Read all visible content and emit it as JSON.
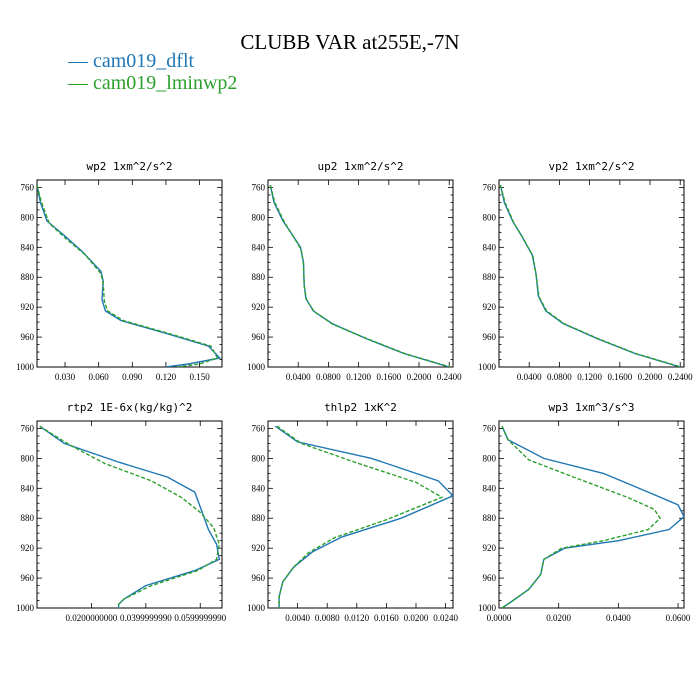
{
  "title": "CLUBB VAR at255E,-7N",
  "legend": [
    {
      "label": "cam019_dflt",
      "color": "#1f77b4"
    },
    {
      "label": "cam019_lminwp2",
      "color": "#2ca02c"
    }
  ],
  "chart_data": [
    {
      "type": "line",
      "title": "wp2  1xm^2/s^2",
      "xlim": [
        0.005,
        0.17
      ],
      "ylim": [
        750,
        1000
      ],
      "yticks": [
        "760",
        "800",
        "840",
        "880",
        "920",
        "960",
        "1000"
      ],
      "xticks": [
        "0.030",
        "0.060",
        "0.090",
        "0.120",
        "0.150"
      ],
      "xtick_values": [
        0.03,
        0.06,
        0.09,
        0.12,
        0.15
      ],
      "series": [
        {
          "name": "cam019_dflt",
          "x": [
            0.005,
            0.008,
            0.014,
            0.03,
            0.045,
            0.062,
            0.064,
            0.063,
            0.066,
            0.08,
            0.12,
            0.158,
            0.168,
            0.14,
            0.12
          ],
          "y": [
            757,
            780,
            805,
            825,
            845,
            872,
            885,
            910,
            925,
            938,
            955,
            972,
            988,
            996,
            1000
          ]
        },
        {
          "name": "cam019_lminwp2",
          "x": [
            0.005,
            0.009,
            0.016,
            0.032,
            0.048,
            0.062,
            0.064,
            0.065,
            0.068,
            0.082,
            0.122,
            0.16,
            0.166,
            0.15,
            0.13
          ],
          "y": [
            757,
            780,
            808,
            830,
            850,
            875,
            888,
            912,
            925,
            938,
            955,
            972,
            988,
            996,
            1000
          ]
        }
      ]
    },
    {
      "type": "line",
      "title": "up2  1xm^2/s^2",
      "xlim": [
        0.0,
        0.245
      ],
      "ylim": [
        750,
        1000
      ],
      "yticks": [
        "760",
        "800",
        "840",
        "880",
        "920",
        "960",
        "1000"
      ],
      "xticks": [
        "0.0400",
        "0.0800",
        "0.1200",
        "0.1600",
        "0.2000",
        "0.2400"
      ],
      "xtick_values": [
        0.04,
        0.08,
        0.12,
        0.16,
        0.2,
        0.24
      ],
      "series": [
        {
          "name": "cam019_dflt",
          "x": [
            0.003,
            0.008,
            0.02,
            0.03,
            0.043,
            0.047,
            0.048,
            0.05,
            0.06,
            0.085,
            0.13,
            0.18,
            0.24
          ],
          "y": [
            757,
            780,
            805,
            820,
            840,
            860,
            890,
            908,
            925,
            942,
            962,
            982,
            1000
          ]
        },
        {
          "name": "cam019_lminwp2",
          "x": [
            0.003,
            0.009,
            0.022,
            0.032,
            0.044,
            0.047,
            0.048,
            0.051,
            0.061,
            0.086,
            0.131,
            0.181,
            0.241
          ],
          "y": [
            757,
            780,
            807,
            823,
            843,
            863,
            892,
            910,
            926,
            943,
            962,
            982,
            1000
          ]
        }
      ]
    },
    {
      "type": "line",
      "title": "vp2  1xm^2/s^2",
      "xlim": [
        0.0,
        0.245
      ],
      "ylim": [
        750,
        1000
      ],
      "yticks": [
        "760",
        "800",
        "840",
        "880",
        "920",
        "960",
        "1000"
      ],
      "xticks": [
        "0.0400",
        "0.0800",
        "0.1200",
        "0.1600",
        "0.2000",
        "0.2400"
      ],
      "xtick_values": [
        0.04,
        0.08,
        0.12,
        0.16,
        0.2,
        0.24
      ],
      "series": [
        {
          "name": "cam019_dflt",
          "x": [
            0.002,
            0.007,
            0.018,
            0.03,
            0.044,
            0.049,
            0.052,
            0.062,
            0.085,
            0.13,
            0.18,
            0.24
          ],
          "y": [
            757,
            780,
            805,
            825,
            850,
            875,
            905,
            925,
            942,
            962,
            982,
            1000
          ]
        },
        {
          "name": "cam019_lminwp2",
          "x": [
            0.002,
            0.008,
            0.02,
            0.032,
            0.045,
            0.049,
            0.053,
            0.063,
            0.086,
            0.131,
            0.181,
            0.241
          ],
          "y": [
            757,
            780,
            808,
            828,
            852,
            877,
            906,
            925,
            942,
            962,
            982,
            1000
          ]
        }
      ]
    },
    {
      "type": "line",
      "title": "rtp2  1E-6x(kg/kg)^2",
      "xlim": [
        0.0,
        0.068
      ],
      "ylim": [
        750,
        1000
      ],
      "yticks": [
        "760",
        "800",
        "840",
        "880",
        "920",
        "960",
        "1000"
      ],
      "xticks": [
        "0.0200000000",
        "0.0399999990",
        "0.0599999990"
      ],
      "xtick_values": [
        0.02,
        0.04,
        0.06
      ],
      "series": [
        {
          "name": "cam019_dflt",
          "x": [
            0.001,
            0.01,
            0.03,
            0.048,
            0.058,
            0.061,
            0.063,
            0.066,
            0.067,
            0.058,
            0.04,
            0.032,
            0.03,
            0.03
          ],
          "y": [
            757,
            780,
            805,
            825,
            845,
            875,
            895,
            915,
            935,
            950,
            970,
            988,
            995,
            1000
          ]
        },
        {
          "name": "cam019_lminwp2",
          "x": [
            0.001,
            0.012,
            0.025,
            0.042,
            0.053,
            0.06,
            0.065,
            0.067,
            0.066,
            0.059,
            0.042,
            0.032,
            0.03,
            0.03
          ],
          "y": [
            757,
            782,
            807,
            830,
            852,
            872,
            893,
            915,
            935,
            950,
            970,
            988,
            995,
            1000
          ]
        }
      ]
    },
    {
      "type": "line",
      "title": "thlp2  1xK^2",
      "xlim": [
        0.0,
        0.025
      ],
      "ylim": [
        750,
        1000
      ],
      "yticks": [
        "760",
        "800",
        "840",
        "880",
        "920",
        "960",
        "1000"
      ],
      "xticks": [
        "0.0040",
        "0.0080",
        "0.0120",
        "0.0160",
        "0.0200",
        "0.0240"
      ],
      "xtick_values": [
        0.004,
        0.008,
        0.012,
        0.016,
        0.02,
        0.024
      ],
      "series": [
        {
          "name": "cam019_dflt",
          "x": [
            0.001,
            0.004,
            0.014,
            0.023,
            0.025,
            0.018,
            0.01,
            0.006,
            0.0035,
            0.002,
            0.0015,
            0.0015
          ],
          "y": [
            757,
            778,
            800,
            830,
            850,
            880,
            905,
            925,
            945,
            965,
            985,
            1000
          ]
        },
        {
          "name": "cam019_lminwp2",
          "x": [
            0.0012,
            0.0045,
            0.012,
            0.02,
            0.0235,
            0.016,
            0.009,
            0.0055,
            0.0034,
            0.002,
            0.0015,
            0.0015
          ],
          "y": [
            757,
            780,
            806,
            832,
            852,
            882,
            906,
            926,
            946,
            965,
            985,
            1000
          ]
        }
      ]
    },
    {
      "type": "line",
      "title": "wp3  1xm^3/s^3",
      "xlim": [
        0.0,
        0.062
      ],
      "ylim": [
        750,
        1000
      ],
      "yticks": [
        "760",
        "800",
        "840",
        "880",
        "920",
        "960",
        "1000"
      ],
      "xticks": [
        "0.0000",
        "0.0200",
        "0.0400",
        "0.0600"
      ],
      "xtick_values": [
        0.0,
        0.02,
        0.04,
        0.06
      ],
      "series": [
        {
          "name": "cam019_dflt",
          "x": [
            0.001,
            0.003,
            0.015,
            0.035,
            0.05,
            0.06,
            0.062,
            0.057,
            0.04,
            0.022,
            0.015,
            0.014,
            0.01,
            0.004,
            0.001
          ],
          "y": [
            757,
            775,
            800,
            820,
            845,
            862,
            878,
            895,
            910,
            920,
            935,
            955,
            975,
            992,
            1000
          ]
        },
        {
          "name": "cam019_lminwp2",
          "x": [
            0.001,
            0.003,
            0.01,
            0.025,
            0.043,
            0.052,
            0.054,
            0.05,
            0.035,
            0.021,
            0.015,
            0.014,
            0.01,
            0.004,
            0.001
          ],
          "y": [
            757,
            775,
            802,
            825,
            852,
            868,
            880,
            895,
            910,
            920,
            935,
            955,
            975,
            992,
            1000
          ]
        }
      ]
    }
  ]
}
